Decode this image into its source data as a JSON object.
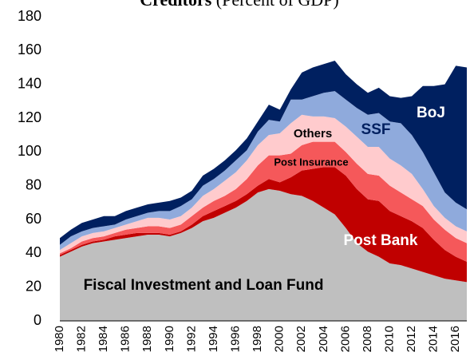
{
  "chart_data": {
    "type": "stacked-area",
    "title": "Creditors",
    "subtitle": "(Percent of GDP)",
    "x": [
      1980,
      1981,
      1982,
      1983,
      1984,
      1985,
      1986,
      1987,
      1988,
      1989,
      1990,
      1991,
      1992,
      1993,
      1994,
      1995,
      1996,
      1997,
      1998,
      1999,
      2000,
      2001,
      2002,
      2003,
      2004,
      2005,
      2006,
      2007,
      2008,
      2009,
      2010,
      2011,
      2012,
      2013,
      2014,
      2015,
      2016,
      2017
    ],
    "xlim": [
      1980,
      2017
    ],
    "xticks": [
      1980,
      1982,
      1984,
      1986,
      1988,
      1990,
      1992,
      1994,
      1996,
      1998,
      2000,
      2002,
      2004,
      2006,
      2008,
      2010,
      2012,
      2014,
      2016
    ],
    "ylim": [
      0,
      180
    ],
    "yticks": [
      0,
      20,
      40,
      60,
      80,
      100,
      120,
      140,
      160,
      180
    ],
    "grid": false,
    "series": [
      {
        "name": "Fiscal Investment and Loan Fund",
        "color": "#bfbfbf",
        "values": [
          38,
          41,
          44,
          46,
          47,
          48,
          49,
          50,
          51,
          51,
          50,
          52,
          55,
          59,
          61,
          64,
          67,
          71,
          76,
          78,
          77,
          75,
          74,
          71,
          67,
          63,
          55,
          46,
          41,
          38,
          34,
          33,
          31,
          29,
          27,
          25,
          24,
          23
        ]
      },
      {
        "name": "Post Bank",
        "color": "#c00000",
        "values": [
          1,
          1,
          1,
          1,
          1,
          2,
          2,
          2,
          1,
          1,
          1,
          1,
          2,
          3,
          4,
          4,
          4,
          4,
          4,
          6,
          5,
          10,
          15,
          19,
          24,
          28,
          31,
          32,
          31,
          33,
          31,
          29,
          28,
          26,
          21,
          17,
          14,
          12
        ]
      },
      {
        "name": "Post Insurance",
        "color": "#f5585a",
        "values": [
          1,
          1,
          2,
          2,
          2,
          2,
          3,
          3,
          4,
          4,
          4,
          4,
          5,
          5,
          6,
          6,
          7,
          9,
          12,
          14,
          16,
          14,
          15,
          16,
          15,
          15,
          14,
          15,
          15,
          15,
          15,
          14,
          13,
          13,
          12,
          12,
          11,
          11
        ]
      },
      {
        "name": "Others",
        "color": "#ffcbcd",
        "values": [
          2,
          3,
          3,
          3,
          3,
          3,
          3,
          4,
          5,
          5,
          5,
          5,
          5,
          7,
          7,
          9,
          10,
          11,
          12,
          12,
          13,
          18,
          18,
          15,
          15,
          14,
          15,
          16,
          16,
          17,
          16,
          16,
          15,
          10,
          8,
          7,
          7,
          7
        ]
      },
      {
        "name": "SSF",
        "color": "#8faadc",
        "values": [
          3,
          4,
          3,
          3,
          3,
          2,
          3,
          3,
          3,
          4,
          5,
          6,
          5,
          6,
          6,
          6,
          7,
          6,
          8,
          9,
          7,
          14,
          9,
          12,
          14,
          16,
          16,
          17,
          19,
          20,
          22,
          25,
          23,
          22,
          20,
          15,
          14,
          13
        ]
      },
      {
        "name": "BoJ",
        "color": "#002060",
        "values": [
          4,
          4,
          5,
          5,
          6,
          5,
          5,
          5,
          5,
          5,
          6,
          5,
          5,
          6,
          6,
          6,
          6,
          7,
          6,
          9,
          7,
          6,
          16,
          17,
          17,
          18,
          15,
          14,
          13,
          15,
          15,
          15,
          23,
          39,
          51,
          64,
          81,
          84
        ]
      }
    ]
  }
}
